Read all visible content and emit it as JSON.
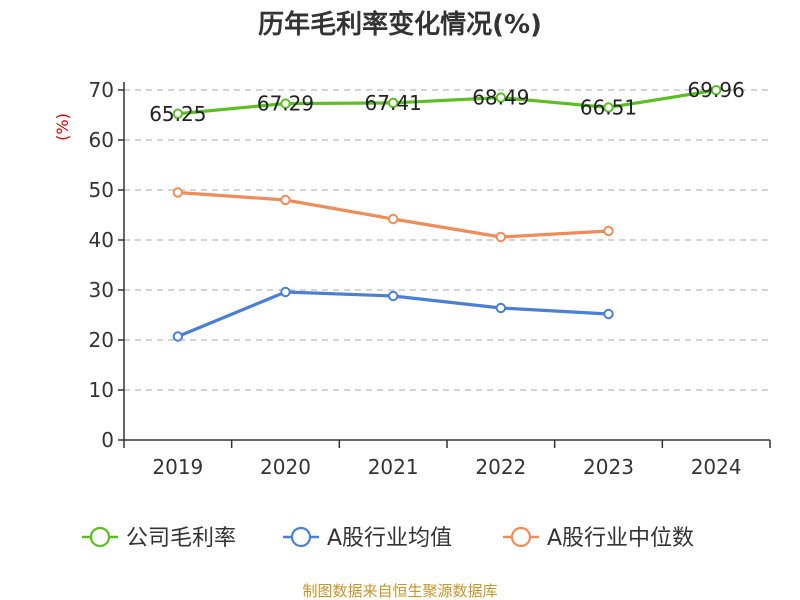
{
  "chart_data": {
    "type": "line",
    "title": "历年毛利率变化情况(%)",
    "ylabel": "(%)",
    "xlabel": "",
    "categories": [
      "2019",
      "2020",
      "2021",
      "2022",
      "2023",
      "2024"
    ],
    "ylim": [
      0,
      70
    ],
    "yticks": [
      "0",
      "10",
      "20",
      "30",
      "40",
      "50",
      "60",
      "70"
    ],
    "grid": true,
    "legend_position": "bottom",
    "series": [
      {
        "name": "公司毛利率",
        "color": "#5bbf21",
        "values": [
          65.25,
          67.29,
          67.41,
          68.49,
          66.51,
          69.96
        ],
        "labels": [
          "65.25",
          "67.29",
          "67.41",
          "68.49",
          "66.51",
          "69.96"
        ]
      },
      {
        "name": "A股行业均值",
        "color": "#4a7fd6",
        "values": [
          20.7,
          29.6,
          28.8,
          26.4,
          25.2,
          null
        ]
      },
      {
        "name": "A股行业中位数",
        "color": "#f08c59",
        "values": [
          49.5,
          48.0,
          44.2,
          40.6,
          41.8,
          null
        ]
      }
    ]
  },
  "source": "制图数据来自恒生聚源数据库"
}
